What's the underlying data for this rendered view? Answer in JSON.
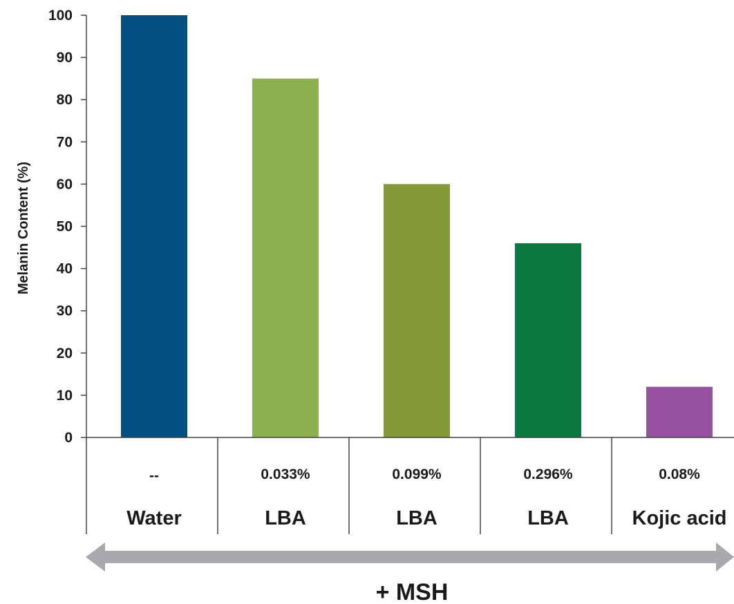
{
  "chart_data": {
    "type": "bar",
    "ylabel": "Melanin Content (%)",
    "ylim": [
      0,
      100
    ],
    "yticks": [
      0,
      10,
      20,
      30,
      40,
      50,
      60,
      70,
      80,
      90,
      100
    ],
    "grid": false,
    "categories": [
      {
        "concentration": "--",
        "treatment": "Water",
        "value": 100,
        "color": "#004f80"
      },
      {
        "concentration": "0.033%",
        "treatment": "LBA",
        "value": 85,
        "color": "#8db04f"
      },
      {
        "concentration": "0.099%",
        "treatment": "LBA",
        "value": 60,
        "color": "#849937"
      },
      {
        "concentration": "0.296%",
        "treatment": "LBA",
        "value": 46,
        "color": "#0a7840"
      },
      {
        "concentration": "0.08%",
        "treatment": "Kojic acid",
        "value": 12,
        "color": "#9553a0"
      }
    ],
    "footer_label": "+ MSH",
    "arrow_color": "#a7a9ac",
    "axis_color": "#444444"
  }
}
